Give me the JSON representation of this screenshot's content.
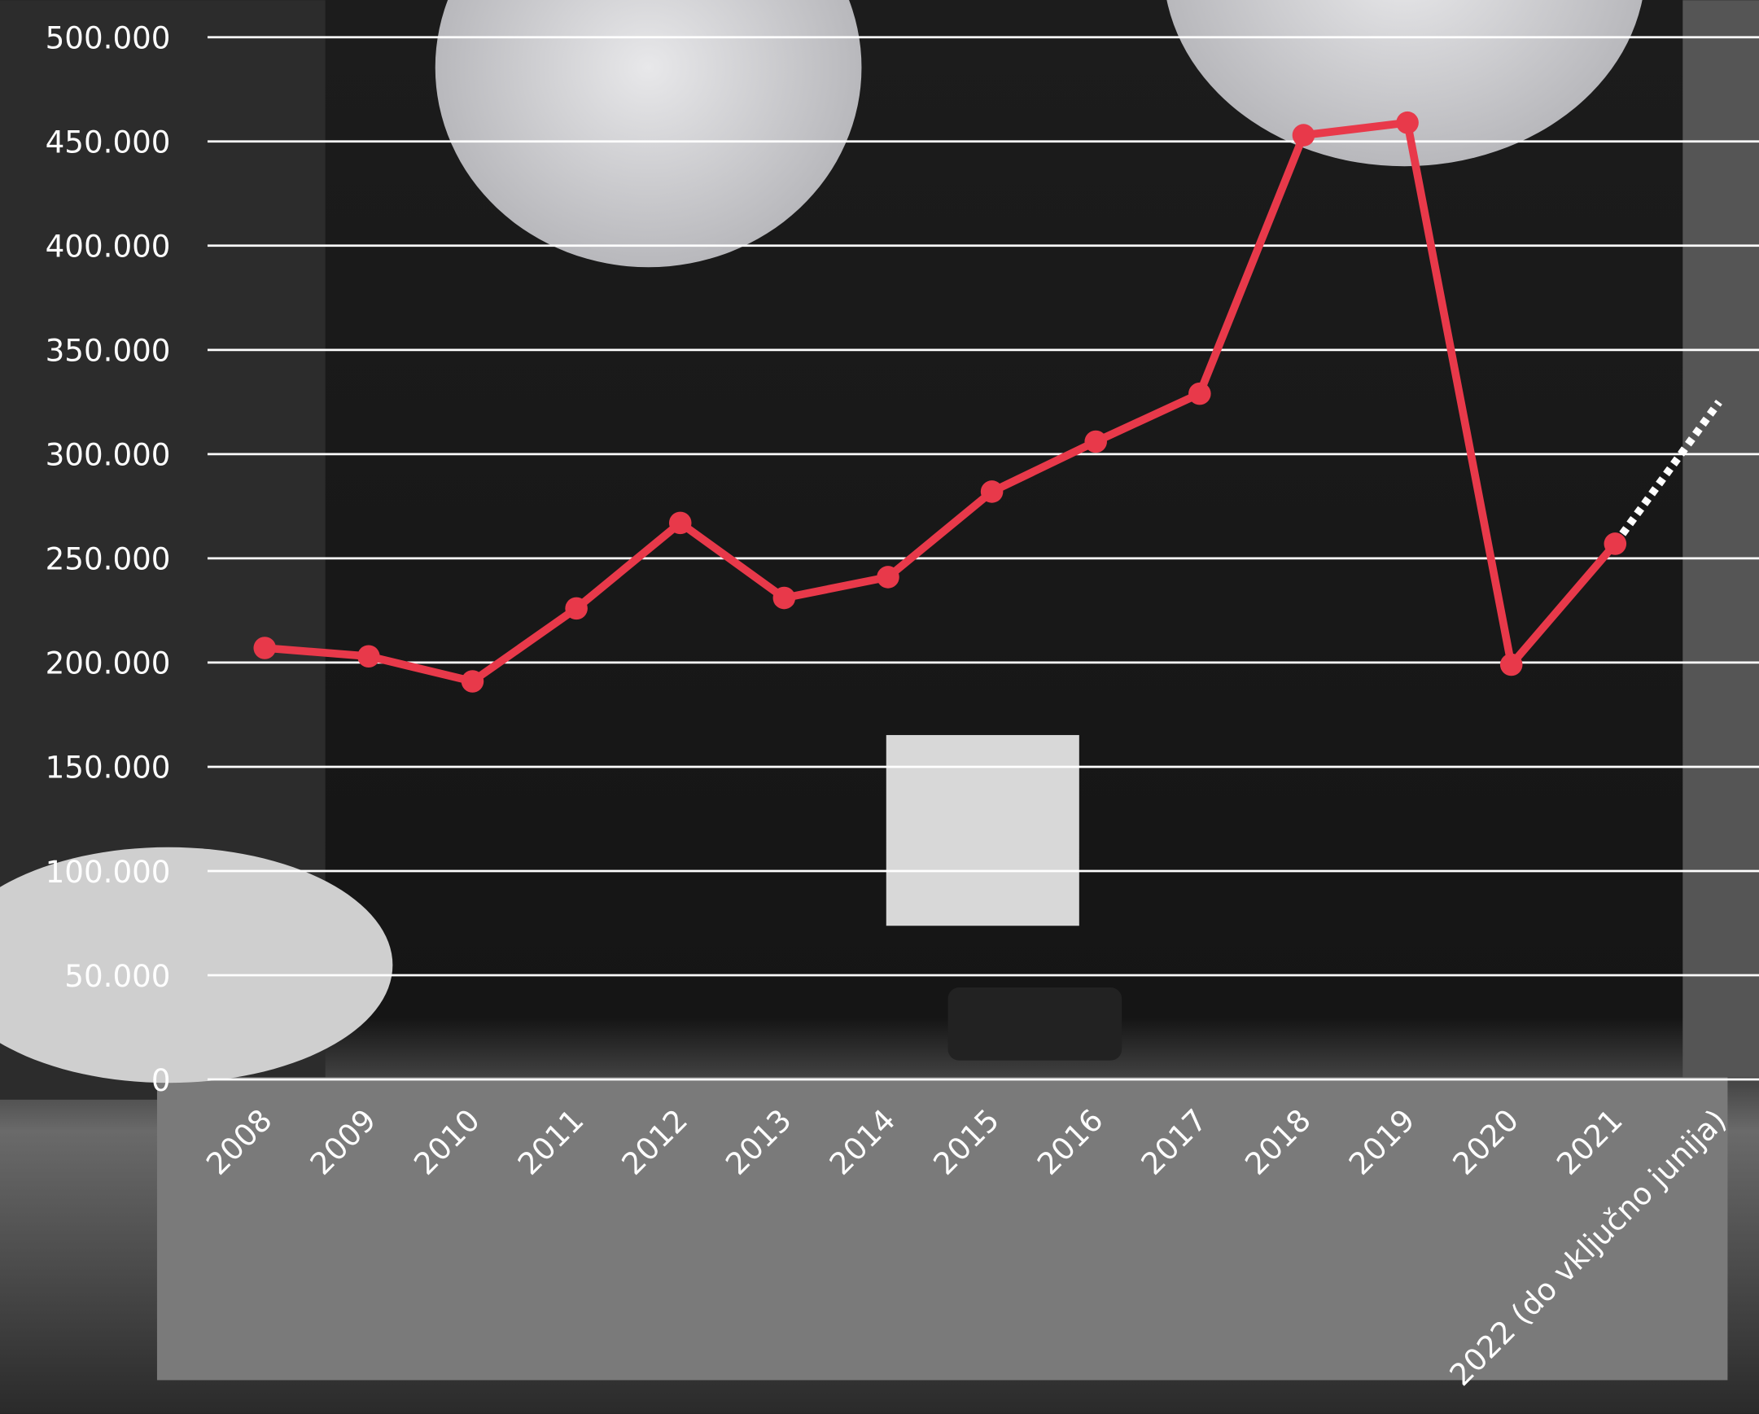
{
  "chart_data": {
    "type": "line",
    "categories": [
      "2008",
      "2009",
      "2010",
      "2011",
      "2012",
      "2013",
      "2014",
      "2015",
      "2016",
      "2017",
      "2018",
      "2019",
      "2020",
      "2021",
      "2022 (do vključno junija)"
    ],
    "values": [
      207000,
      203000,
      191000,
      226000,
      267000,
      231000,
      241000,
      282000,
      306000,
      329000,
      453000,
      459000,
      199000,
      257000,
      325000
    ],
    "color": "#e8394a",
    "last_segment_dotted": true,
    "ylim": [
      0,
      500000
    ],
    "yticks": [
      {
        "value": 0,
        "label": "0"
      },
      {
        "value": 50000,
        "label": "50.000"
      },
      {
        "value": 100000,
        "label": "100.000"
      },
      {
        "value": 150000,
        "label": "150.000"
      },
      {
        "value": 200000,
        "label": "200.000"
      },
      {
        "value": 250000,
        "label": "250.000"
      },
      {
        "value": 300000,
        "label": "300.000"
      },
      {
        "value": 350000,
        "label": "350.000"
      },
      {
        "value": 400000,
        "label": "400.000"
      },
      {
        "value": 450000,
        "label": "450.000"
      },
      {
        "value": 500000,
        "label": "500.000"
      }
    ],
    "grid": true
  }
}
